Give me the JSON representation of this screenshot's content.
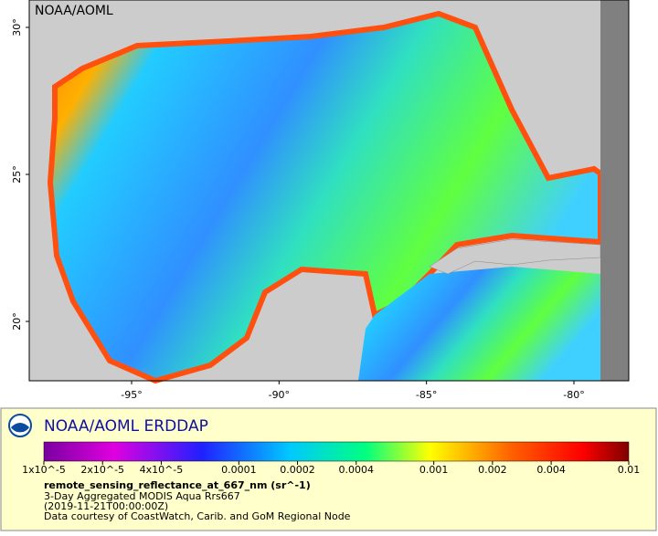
{
  "map": {
    "corner_label": "NOAA/AOML",
    "lat_labels": [
      {
        "value": 30,
        "label": "30°"
      },
      {
        "value": 25,
        "label": "25°"
      },
      {
        "value": 20,
        "label": "20°"
      }
    ],
    "lon_labels": [
      {
        "value": -95,
        "label": "-95°"
      },
      {
        "value": -90,
        "label": "-90°"
      },
      {
        "value": -85,
        "label": "-85°"
      },
      {
        "value": -80,
        "label": "-80°"
      }
    ]
  },
  "legend": {
    "brand": "NOAA/AOML ERDDAP",
    "colorbar": {
      "range": [
        1e-05,
        0.01
      ],
      "log": true,
      "ticks": [
        {
          "value": 1e-05,
          "label": "1x10^-5"
        },
        {
          "value": 2e-05,
          "label": "2x10^-5"
        },
        {
          "value": 4e-05,
          "label": "4x10^-5"
        },
        {
          "value": 0.0001,
          "label": "0.0001"
        },
        {
          "value": 0.0002,
          "label": "0.0002"
        },
        {
          "value": 0.0004,
          "label": "0.0004"
        },
        {
          "value": 0.001,
          "label": "0.001"
        },
        {
          "value": 0.002,
          "label": "0.002"
        },
        {
          "value": 0.004,
          "label": "0.004"
        },
        {
          "value": 0.01,
          "label": "0.01"
        }
      ]
    },
    "variable": "remote_sensing_reflectance_at_667_nm (sr^-1)",
    "lines": [
      "3-Day Aggregated MODIS Aqua Rrs667",
      "(2019-11-21T00:00:00Z)",
      "Data courtesy of CoastWatch, Carib. and GoM Regional Node"
    ]
  }
}
